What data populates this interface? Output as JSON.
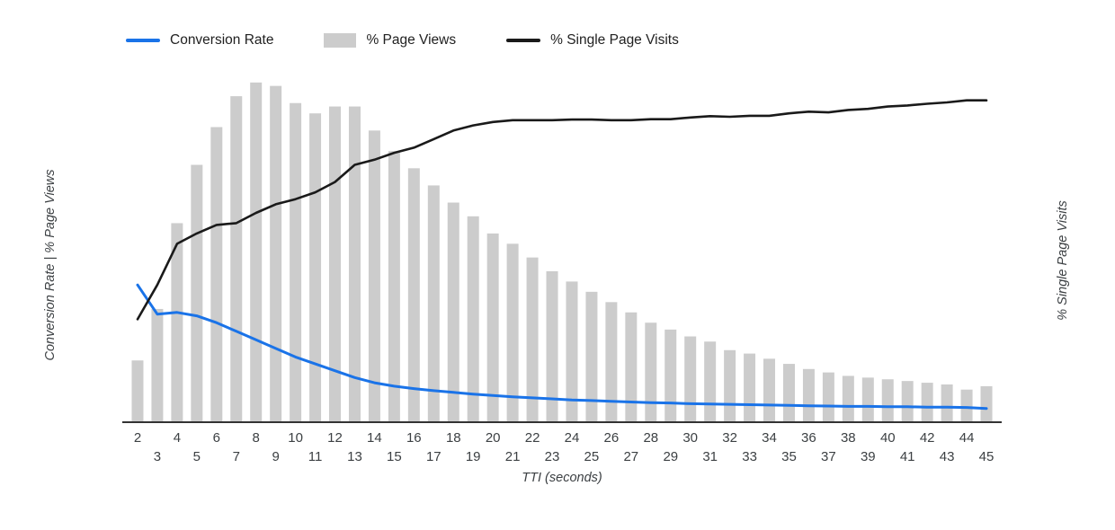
{
  "legend": [
    {
      "label": "Conversion Rate",
      "type": "line",
      "color": "#1a73e8"
    },
    {
      "label": "% Page Views",
      "type": "box",
      "color": "#cccccc"
    },
    {
      "label": "% Single Page Visits",
      "type": "line",
      "color": "#1a1a1a"
    }
  ],
  "axes": {
    "x_title": "TTI (seconds)",
    "y_left_title": "Conversion Rate | % Page Views",
    "y_right_title": "% Single Page Visits"
  },
  "chart_data": {
    "type": "bar+line combo",
    "x": [
      2,
      3,
      4,
      5,
      6,
      7,
      8,
      9,
      10,
      11,
      12,
      13,
      14,
      15,
      16,
      17,
      18,
      19,
      20,
      21,
      22,
      23,
      24,
      25,
      26,
      27,
      28,
      29,
      30,
      31,
      32,
      33,
      34,
      35,
      36,
      37,
      38,
      39,
      40,
      41,
      42,
      43,
      44,
      45
    ],
    "xlabel": "TTI (seconds)",
    "ylabel_left": "Conversion Rate | % Page Views",
    "ylabel_right": "% Single Page Visits",
    "ylim": [
      0,
      100
    ],
    "grid": false,
    "legend_position": "top",
    "series": [
      {
        "name": "% Page Views",
        "type": "bar",
        "axis": "left",
        "color": "#cccccc",
        "values": [
          18,
          33,
          58,
          75,
          86,
          95,
          99,
          98,
          93,
          90,
          92,
          92,
          85,
          79,
          74,
          69,
          64,
          60,
          55,
          52,
          48,
          44,
          41,
          38,
          35,
          32,
          29,
          27,
          25,
          23.5,
          21,
          20,
          18.5,
          17,
          15.5,
          14.5,
          13.5,
          13,
          12.5,
          12,
          11.5,
          11,
          9.5,
          10.5
        ]
      },
      {
        "name": "Conversion Rate",
        "type": "line",
        "axis": "left",
        "color": "#1a73e8",
        "values": [
          40,
          31.5,
          32,
          31,
          29,
          26.5,
          24,
          21.5,
          19,
          17,
          15,
          13,
          11.5,
          10.5,
          9.8,
          9.2,
          8.7,
          8.2,
          7.8,
          7.4,
          7.1,
          6.8,
          6.5,
          6.3,
          6.1,
          5.9,
          5.7,
          5.6,
          5.4,
          5.3,
          5.2,
          5.1,
          5.0,
          4.9,
          4.8,
          4.7,
          4.6,
          4.6,
          4.5,
          4.5,
          4.4,
          4.4,
          4.3,
          4.0
        ]
      },
      {
        "name": "% Single Page Visits",
        "type": "line",
        "axis": "right",
        "color": "#1a1a1a",
        "values": [
          30,
          40,
          52,
          55,
          57.5,
          58,
          61,
          63.5,
          65,
          67,
          70,
          75,
          76.5,
          78.5,
          80,
          82.5,
          85,
          86.5,
          87.5,
          88,
          88,
          88,
          88.2,
          88.2,
          88,
          88,
          88.3,
          88.3,
          88.8,
          89.2,
          89,
          89.3,
          89.3,
          90,
          90.5,
          90.3,
          91,
          91.3,
          92,
          92.3,
          92.8,
          93.2,
          93.8,
          93.8
        ]
      }
    ]
  }
}
